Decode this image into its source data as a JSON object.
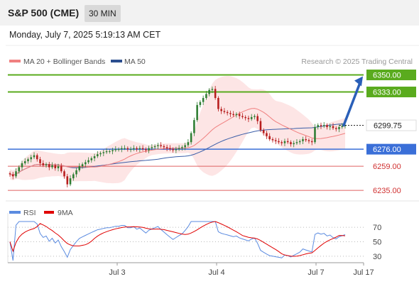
{
  "header": {
    "title": "S&P 500 (CME)",
    "timeframe": "30 MIN",
    "datetime": "Monday, July 7, 2025 5:19:13 AM CET"
  },
  "legend": {
    "ma20_bb": "MA 20 + Bollinger Bands",
    "ma50": "MA 50",
    "credit": "Research © 2025 Trading Central"
  },
  "colors": {
    "green_level": "#5aab1e",
    "blue_level": "#3a6fd8",
    "red_level": "#e06060",
    "candle_up": "#2e7d32",
    "candle_down": "#b71c1c",
    "ma20": "#f08080",
    "bollinger_fill": "#fde0e0",
    "ma50": "#3b5ea8",
    "rsi": "#5b8be0",
    "rsi_ma": "#e00000",
    "arrow": "#2a5fb8"
  },
  "chart_data": [
    {
      "type": "candlestick",
      "title": "S&P 500 (CME) 30 MIN",
      "ylim": [
        6228,
        6356
      ],
      "x_ticks": [
        "Jul 3",
        "Jul 4",
        "Jul 7",
        "Jul 17"
      ],
      "current_price": 6299.75,
      "levels": [
        {
          "label": "6350.00",
          "value": 6350.0,
          "kind": "resistance"
        },
        {
          "label": "6333.00",
          "value": 6333.0,
          "kind": "resistance"
        },
        {
          "label": "6276.00",
          "value": 6276.0,
          "kind": "pivot"
        },
        {
          "label": "6259.00",
          "value": 6259.0,
          "kind": "support"
        },
        {
          "label": "6235.00",
          "value": 6235.0,
          "kind": "support"
        }
      ],
      "projection": {
        "from": 6299.75,
        "to": 6350.0
      },
      "series": [
        {
          "name": "MA 20 + Bollinger Bands"
        },
        {
          "name": "MA 50"
        }
      ],
      "closes": [
        6251,
        6249,
        6254,
        6258,
        6262,
        6264,
        6266,
        6268,
        6270,
        6266,
        6262,
        6260,
        6261,
        6258,
        6260,
        6257,
        6259,
        6254,
        6249,
        6241,
        6247,
        6251,
        6255,
        6259,
        6261,
        6263,
        6265,
        6267,
        6269,
        6271,
        6272,
        6273,
        6274,
        6274,
        6275,
        6276,
        6276,
        6277,
        6277,
        6276,
        6276,
        6277,
        6276,
        6277,
        6276,
        6275,
        6277,
        6278,
        6279,
        6280,
        6279,
        6278,
        6277,
        6276,
        6275,
        6276,
        6277,
        6278,
        6280,
        6283,
        6292,
        6305,
        6320,
        6323,
        6327,
        6331,
        6335,
        6336,
        6327,
        6316,
        6314,
        6313,
        6312,
        6311,
        6310,
        6311,
        6309,
        6308,
        6307,
        6306,
        6308,
        6309,
        6304,
        6295,
        6292,
        6289,
        6286,
        6285,
        6284,
        6283,
        6282,
        6284,
        6283,
        6281,
        6282,
        6283,
        6284,
        6286,
        6285,
        6284,
        6283,
        6298,
        6300,
        6299,
        6300,
        6298,
        6299,
        6297,
        6296,
        6298,
        6299,
        6300
      ]
    },
    {
      "type": "line",
      "title": "RSI",
      "ylim": [
        23,
        80
      ],
      "y_ticks": [
        70,
        50,
        30
      ],
      "series": [
        {
          "name": "RSI"
        },
        {
          "name": "9MA"
        }
      ]
    }
  ]
}
